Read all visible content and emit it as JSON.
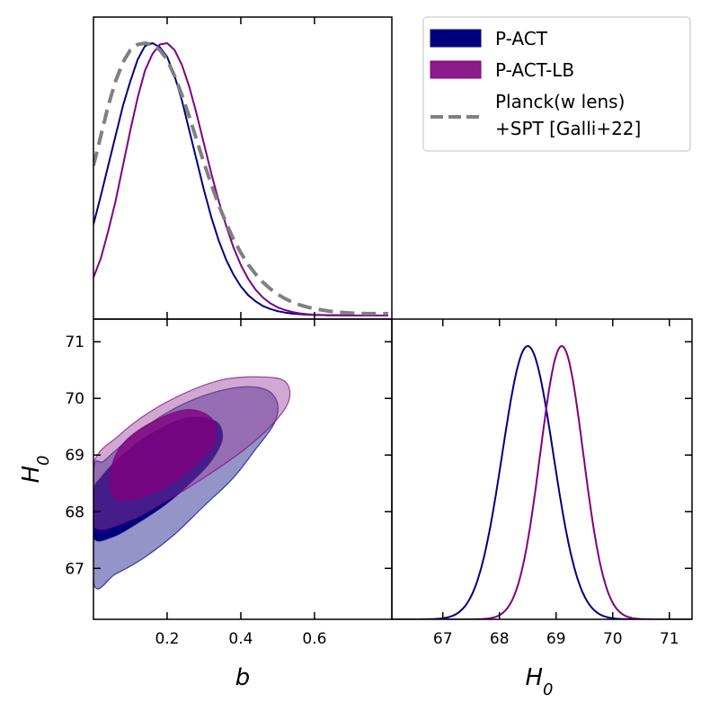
{
  "chart_data": [
    {
      "type": "line",
      "panel": "marginal-b",
      "title": "",
      "xlabel": "",
      "ylabel": "",
      "x": [
        0.0,
        0.02,
        0.04,
        0.06,
        0.08,
        0.1,
        0.12,
        0.14,
        0.16,
        0.18,
        0.2,
        0.22,
        0.24,
        0.26,
        0.28,
        0.3,
        0.32,
        0.34,
        0.36,
        0.38,
        0.4,
        0.42,
        0.44,
        0.46,
        0.48,
        0.5,
        0.52,
        0.54,
        0.56,
        0.58,
        0.6,
        0.62,
        0.64,
        0.66,
        0.68,
        0.7,
        0.72,
        0.74,
        0.76,
        0.78,
        0.8
      ],
      "xlim": [
        0.0,
        0.81
      ],
      "ylim": [
        0,
        1.0
      ],
      "series": [
        {
          "name": "P-ACT",
          "color": "#00007f",
          "dash": false,
          "values": [
            0.335,
            0.44,
            0.55,
            0.66,
            0.77,
            0.86,
            0.94,
            0.99,
            1.0,
            0.985,
            0.95,
            0.88,
            0.79,
            0.68,
            0.57,
            0.46,
            0.36,
            0.275,
            0.205,
            0.15,
            0.107,
            0.075,
            0.052,
            0.035,
            0.024,
            0.016,
            0.011,
            0.007,
            0.005,
            0.003,
            0.002,
            0.0015,
            0.001,
            0.0005,
            0.0003,
            0.0002,
            0.0001,
            0.0,
            0.0,
            0.0,
            0.0
          ]
        },
        {
          "name": "P-ACT-LB",
          "color": "#7f007f",
          "dash": false,
          "values": [
            0.14,
            0.21,
            0.31,
            0.42,
            0.55,
            0.68,
            0.8,
            0.9,
            0.96,
            0.995,
            1.0,
            0.975,
            0.92,
            0.84,
            0.74,
            0.63,
            0.52,
            0.42,
            0.33,
            0.25,
            0.185,
            0.135,
            0.095,
            0.066,
            0.045,
            0.03,
            0.02,
            0.013,
            0.008,
            0.005,
            0.003,
            0.002,
            0.001,
            0.0005,
            0.0003,
            0.0001,
            0.0,
            0.0,
            0.0,
            0.0,
            0.0
          ]
        },
        {
          "name": "Planck(w lens)\n+SPT [Galli+22]",
          "color": "#808080",
          "dash": true,
          "values": [
            0.55,
            0.66,
            0.77,
            0.86,
            0.93,
            0.975,
            0.995,
            1.0,
            0.995,
            0.975,
            0.94,
            0.88,
            0.81,
            0.73,
            0.645,
            0.56,
            0.48,
            0.405,
            0.34,
            0.28,
            0.23,
            0.187,
            0.152,
            0.122,
            0.098,
            0.078,
            0.062,
            0.049,
            0.039,
            0.031,
            0.025,
            0.02,
            0.016,
            0.013,
            0.011,
            0.009,
            0.008,
            0.007,
            0.007,
            0.007,
            0.007
          ]
        }
      ],
      "ticks": [
        0.2,
        0.4,
        0.6
      ]
    },
    {
      "type": "contour",
      "panel": "joint-b-H0",
      "xlabel": "b",
      "ylabel": "H_0",
      "xlim": [
        0.0,
        0.81
      ],
      "ylim": [
        66.1,
        71.4
      ],
      "xticks": [
        "0.2",
        "0.4",
        "0.6"
      ],
      "yticks": [
        "67",
        "68",
        "69",
        "70",
        "71"
      ],
      "series": [
        {
          "name": "P-ACT",
          "level": "95%",
          "color": "#00007f",
          "points": [
            [
              0.0,
              66.75
            ],
            [
              0.06,
              66.9
            ],
            [
              0.14,
              67.2
            ],
            [
              0.22,
              67.6
            ],
            [
              0.3,
              68.1
            ],
            [
              0.38,
              68.6
            ],
            [
              0.44,
              69.1
            ],
            [
              0.49,
              69.55
            ],
            [
              0.5,
              69.9
            ],
            [
              0.47,
              70.15
            ],
            [
              0.4,
              70.2
            ],
            [
              0.3,
              70.05
            ],
            [
              0.2,
              69.75
            ],
            [
              0.1,
              69.3
            ],
            [
              0.03,
              68.9
            ],
            [
              0.0,
              68.7
            ]
          ]
        },
        {
          "name": "P-ACT",
          "level": "68%",
          "color": "#00007f",
          "points": [
            [
              0.0,
              67.55
            ],
            [
              0.05,
              67.55
            ],
            [
              0.12,
              67.8
            ],
            [
              0.2,
              68.15
            ],
            [
              0.27,
              68.55
            ],
            [
              0.32,
              68.9
            ],
            [
              0.35,
              69.3
            ],
            [
              0.33,
              69.6
            ],
            [
              0.25,
              69.65
            ],
            [
              0.15,
              69.35
            ],
            [
              0.07,
              68.95
            ],
            [
              0.02,
              68.6
            ],
            [
              0.0,
              68.35
            ]
          ]
        },
        {
          "name": "P-ACT-LB",
          "level": "95%",
          "color": "#7f007f",
          "points": [
            [
              0.0,
              67.75
            ],
            [
              0.1,
              67.85
            ],
            [
              0.2,
              68.2
            ],
            [
              0.3,
              68.6
            ],
            [
              0.4,
              69.05
            ],
            [
              0.48,
              69.5
            ],
            [
              0.53,
              69.95
            ],
            [
              0.52,
              70.3
            ],
            [
              0.45,
              70.38
            ],
            [
              0.35,
              70.33
            ],
            [
              0.25,
              70.1
            ],
            [
              0.15,
              69.75
            ],
            [
              0.07,
              69.35
            ],
            [
              0.0,
              68.85
            ]
          ]
        },
        {
          "name": "P-ACT-LB",
          "level": "68%",
          "color": "#7f007f",
          "points": [
            [
              0.05,
              68.3
            ],
            [
              0.1,
              68.2
            ],
            [
              0.2,
              68.45
            ],
            [
              0.28,
              68.85
            ],
            [
              0.33,
              69.25
            ],
            [
              0.32,
              69.65
            ],
            [
              0.25,
              69.8
            ],
            [
              0.15,
              69.55
            ],
            [
              0.08,
              69.2
            ],
            [
              0.05,
              68.8
            ]
          ]
        }
      ]
    },
    {
      "type": "line",
      "panel": "marginal-H0",
      "xlabel": "H_0",
      "ylabel": "",
      "xlim": [
        66.1,
        71.4
      ],
      "ylim": [
        0,
        1.0
      ],
      "xticks": [
        "67",
        "68",
        "69",
        "70",
        "71"
      ],
      "series": [
        {
          "name": "P-ACT",
          "color": "#00007f",
          "mean": 68.5,
          "sigma": 0.45
        },
        {
          "name": "P-ACT-LB",
          "color": "#7f007f",
          "mean": 69.1,
          "sigma": 0.38
        }
      ]
    }
  ],
  "legend": {
    "position": "top-right",
    "items": [
      {
        "label": "P-ACT",
        "style": "fill",
        "color": "#00007f"
      },
      {
        "label": "P-ACT-LB",
        "style": "fill",
        "color": "#8a1d8a"
      },
      {
        "label_line1": "Planck(w lens)",
        "label_line2": "+SPT [Galli+22]",
        "style": "dashed",
        "color": "#808080"
      }
    ]
  }
}
